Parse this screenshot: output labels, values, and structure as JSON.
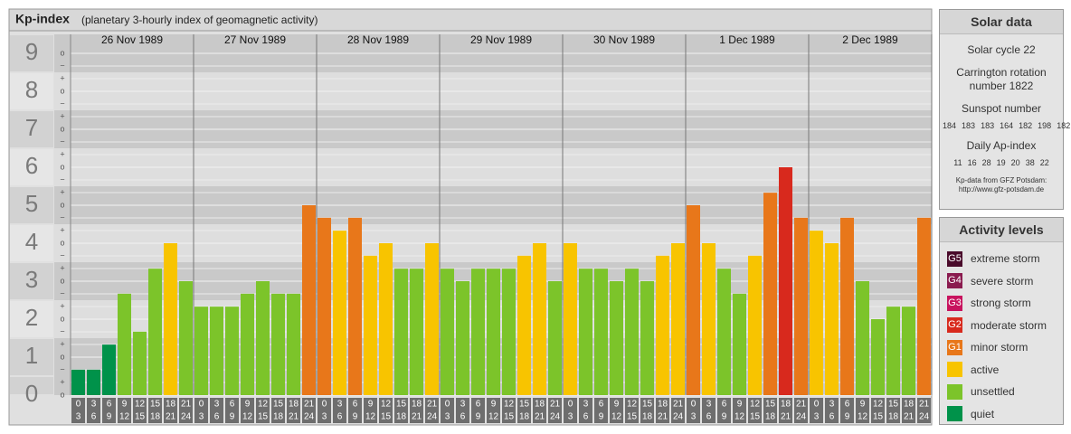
{
  "chart_data": {
    "type": "bar",
    "title": "Kp-index",
    "subtitle": "(planetary 3-hourly index of geomagnetic activity)",
    "days": [
      "26 Nov 1989",
      "27 Nov 1989",
      "28 Nov 1989",
      "29 Nov 1989",
      "30 Nov 1989",
      "1 Dec 1989",
      "2 Dec 1989"
    ],
    "hour_labels": [
      [
        "0",
        "3"
      ],
      [
        "3",
        "6"
      ],
      [
        "6",
        "9"
      ],
      [
        "9",
        "12"
      ],
      [
        "12",
        "15"
      ],
      [
        "15",
        "18"
      ],
      [
        "18",
        "21"
      ],
      [
        "21",
        "24"
      ]
    ],
    "values": [
      0.67,
      0.67,
      1.33,
      2.67,
      1.67,
      3.33,
      4,
      3,
      2.33,
      2.33,
      2.33,
      2.67,
      3,
      2.67,
      2.67,
      5,
      4.67,
      4.33,
      4.67,
      3.67,
      4,
      3.33,
      3.33,
      4,
      3.33,
      3,
      3.33,
      3.33,
      3.33,
      3.67,
      4,
      3,
      4,
      3.33,
      3.33,
      3,
      3.33,
      3,
      3.67,
      4,
      5,
      4,
      3.33,
      2.67,
      3.67,
      5.33,
      6,
      4.67,
      4.33,
      4,
      4.67,
      3,
      2,
      2.33,
      2.33,
      4.67
    ],
    "colors": [
      "#00924a",
      "#00924a",
      "#00924a",
      "#7cc42a",
      "#7cc42a",
      "#7cc42a",
      "#f8c400",
      "#7cc42a",
      "#7cc42a",
      "#7cc42a",
      "#7cc42a",
      "#7cc42a",
      "#7cc42a",
      "#7cc42a",
      "#7cc42a",
      "#e8771a",
      "#e8771a",
      "#f8c400",
      "#e8771a",
      "#f8c400",
      "#f8c400",
      "#7cc42a",
      "#7cc42a",
      "#f8c400",
      "#7cc42a",
      "#7cc42a",
      "#7cc42a",
      "#7cc42a",
      "#7cc42a",
      "#f8c400",
      "#f8c400",
      "#7cc42a",
      "#f8c400",
      "#7cc42a",
      "#7cc42a",
      "#7cc42a",
      "#7cc42a",
      "#7cc42a",
      "#f8c400",
      "#f8c400",
      "#e8771a",
      "#f8c400",
      "#7cc42a",
      "#7cc42a",
      "#f8c400",
      "#e8771a",
      "#d8291d",
      "#e8771a",
      "#f8c400",
      "#f8c400",
      "#e8771a",
      "#7cc42a",
      "#7cc42a",
      "#7cc42a",
      "#7cc42a",
      "#e8771a"
    ],
    "ylim": [
      0,
      9.5
    ],
    "yticks": [
      0,
      1,
      2,
      3,
      4,
      5,
      6,
      7,
      8,
      9
    ],
    "sublabels": [
      "−",
      "o",
      "+"
    ]
  },
  "solar_data": {
    "title": "Solar data",
    "cycle": "Solar cycle 22",
    "carrington": "Carrington rotation number 1822",
    "sunspot_title": "Sunspot number",
    "sunspot": [
      184,
      183,
      183,
      164,
      182,
      198,
      182
    ],
    "ap_title": "Daily Ap-index",
    "ap": [
      11,
      16,
      28,
      19,
      20,
      38,
      22
    ],
    "source": "Kp-data from GFZ Potsdam:",
    "source_url": "http://www.gfz-potsdam.de"
  },
  "activity_levels": {
    "title": "Activity levels",
    "items": [
      {
        "code": "G5",
        "name": "extreme storm",
        "color": "#4a0b2b"
      },
      {
        "code": "G4",
        "name": "severe storm",
        "color": "#8a1b4f"
      },
      {
        "code": "G3",
        "name": "strong storm",
        "color": "#c8135e"
      },
      {
        "code": "G2",
        "name": "moderate storm",
        "color": "#d8291d"
      },
      {
        "code": "G1",
        "name": "minor storm",
        "color": "#e8771a"
      },
      {
        "name": "active",
        "color": "#f8c400"
      },
      {
        "name": "unsettled",
        "color": "#7cc42a"
      },
      {
        "name": "quiet",
        "color": "#00924a"
      }
    ]
  }
}
